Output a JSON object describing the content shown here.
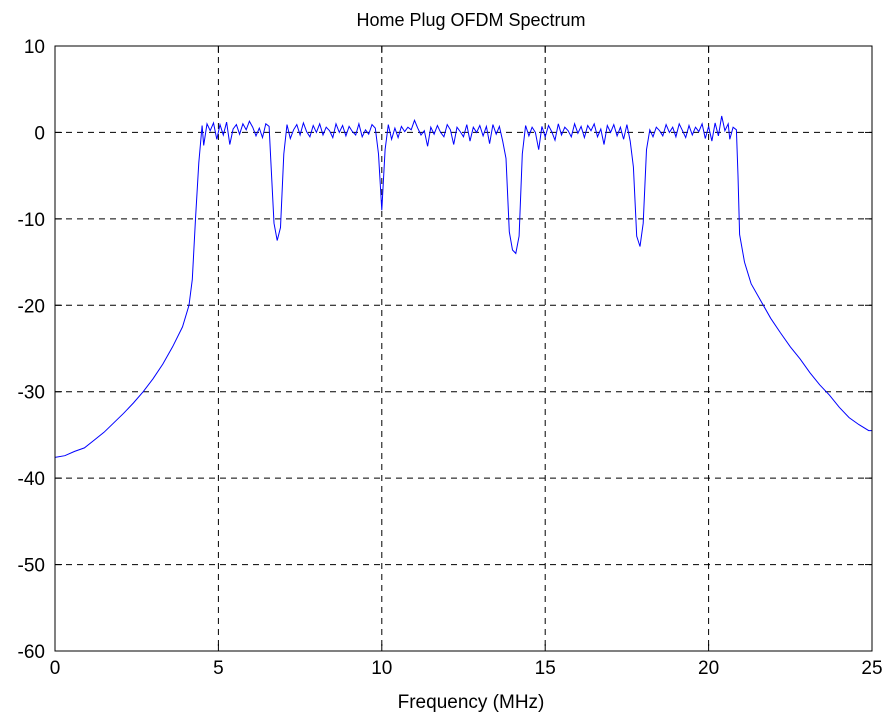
{
  "chart_data": {
    "type": "line",
    "title": "Home Plug OFDM Spectrum",
    "xlabel": "Frequency (MHz)",
    "ylabel": "",
    "xlim": [
      0,
      25
    ],
    "ylim": [
      -60,
      10
    ],
    "xticks": [
      0,
      5,
      10,
      15,
      20,
      25
    ],
    "yticks": [
      -60,
      -50,
      -40,
      -30,
      -20,
      -10,
      0,
      10
    ],
    "xtick_labels": [
      "0",
      "5",
      "10",
      "15",
      "20",
      "25"
    ],
    "ytick_labels": [
      "-60",
      "-50",
      "-40",
      "-30",
      "-20",
      "-10",
      "0",
      "10"
    ],
    "grid": true,
    "legend": "none",
    "line_color": "#0000ff",
    "grid_color": "#000000",
    "series": [
      {
        "points": [
          [
            0.0,
            -37.6
          ],
          [
            0.3,
            -37.4
          ],
          [
            0.6,
            -36.9
          ],
          [
            0.9,
            -36.5
          ],
          [
            1.2,
            -35.6
          ],
          [
            1.5,
            -34.7
          ],
          [
            1.8,
            -33.6
          ],
          [
            2.1,
            -32.5
          ],
          [
            2.4,
            -31.3
          ],
          [
            2.7,
            -30.0
          ],
          [
            3.0,
            -28.5
          ],
          [
            3.3,
            -26.8
          ],
          [
            3.6,
            -24.8
          ],
          [
            3.9,
            -22.5
          ],
          [
            4.1,
            -20.0
          ],
          [
            4.2,
            -17.0
          ],
          [
            4.3,
            -10.0
          ],
          [
            4.4,
            -3.5
          ],
          [
            4.5,
            0.8
          ],
          [
            4.55,
            -1.5
          ],
          [
            4.65,
            1.0
          ],
          [
            4.75,
            0.2
          ],
          [
            4.85,
            1.1
          ],
          [
            4.95,
            -0.8
          ],
          [
            5.05,
            0.9
          ],
          [
            5.15,
            -0.3
          ],
          [
            5.25,
            1.2
          ],
          [
            5.35,
            -1.4
          ],
          [
            5.45,
            0.4
          ],
          [
            5.55,
            0.9
          ],
          [
            5.65,
            -0.2
          ],
          [
            5.75,
            1.0
          ],
          [
            5.85,
            0.3
          ],
          [
            5.95,
            1.3
          ],
          [
            6.05,
            0.6
          ],
          [
            6.15,
            -0.4
          ],
          [
            6.25,
            0.5
          ],
          [
            6.35,
            -0.6
          ],
          [
            6.45,
            1.0
          ],
          [
            6.55,
            0.7
          ],
          [
            6.6,
            -3.0
          ],
          [
            6.7,
            -10.5
          ],
          [
            6.8,
            -12.5
          ],
          [
            6.9,
            -11.0
          ],
          [
            7.0,
            -2.5
          ],
          [
            7.1,
            0.9
          ],
          [
            7.2,
            -0.7
          ],
          [
            7.3,
            0.3
          ],
          [
            7.4,
            0.9
          ],
          [
            7.5,
            -0.3
          ],
          [
            7.6,
            1.1
          ],
          [
            7.7,
            0.1
          ],
          [
            7.8,
            -0.5
          ],
          [
            7.9,
            0.8
          ],
          [
            8.0,
            0.0
          ],
          [
            8.1,
            1.0
          ],
          [
            8.2,
            -0.3
          ],
          [
            8.3,
            0.6
          ],
          [
            8.4,
            0.2
          ],
          [
            8.5,
            -0.6
          ],
          [
            8.6,
            1.0
          ],
          [
            8.7,
            0.0
          ],
          [
            8.8,
            0.8
          ],
          [
            8.9,
            -0.4
          ],
          [
            9.0,
            0.7
          ],
          [
            9.1,
            0.1
          ],
          [
            9.2,
            -0.3
          ],
          [
            9.3,
            1.0
          ],
          [
            9.4,
            -0.5
          ],
          [
            9.5,
            0.3
          ],
          [
            9.6,
            -0.2
          ],
          [
            9.7,
            0.9
          ],
          [
            9.8,
            0.5
          ],
          [
            9.9,
            -2.5
          ],
          [
            10.0,
            -9.0
          ],
          [
            10.1,
            -2.0
          ],
          [
            10.2,
            0.9
          ],
          [
            10.3,
            -0.8
          ],
          [
            10.4,
            0.5
          ],
          [
            10.5,
            -0.6
          ],
          [
            10.6,
            0.7
          ],
          [
            10.7,
            0.1
          ],
          [
            10.8,
            0.6
          ],
          [
            10.9,
            0.3
          ],
          [
            11.0,
            1.4
          ],
          [
            11.1,
            0.5
          ],
          [
            11.2,
            -0.3
          ],
          [
            11.3,
            0.2
          ],
          [
            11.4,
            -1.6
          ],
          [
            11.5,
            0.6
          ],
          [
            11.6,
            -0.2
          ],
          [
            11.7,
            0.8
          ],
          [
            11.8,
            0.0
          ],
          [
            11.9,
            -0.5
          ],
          [
            12.0,
            0.9
          ],
          [
            12.1,
            0.3
          ],
          [
            12.2,
            -1.4
          ],
          [
            12.3,
            0.6
          ],
          [
            12.4,
            0.1
          ],
          [
            12.5,
            -0.5
          ],
          [
            12.6,
            0.9
          ],
          [
            12.7,
            -1.0
          ],
          [
            12.8,
            0.6
          ],
          [
            12.9,
            0.0
          ],
          [
            13.0,
            0.8
          ],
          [
            13.1,
            -0.4
          ],
          [
            13.2,
            0.7
          ],
          [
            13.3,
            -1.3
          ],
          [
            13.4,
            0.9
          ],
          [
            13.5,
            -0.2
          ],
          [
            13.6,
            0.7
          ],
          [
            13.7,
            -1.0
          ],
          [
            13.8,
            -3.0
          ],
          [
            13.9,
            -11.5
          ],
          [
            14.0,
            -13.6
          ],
          [
            14.1,
            -14.0
          ],
          [
            14.2,
            -12.0
          ],
          [
            14.3,
            -2.5
          ],
          [
            14.4,
            0.8
          ],
          [
            14.5,
            -0.4
          ],
          [
            14.6,
            0.6
          ],
          [
            14.7,
            0.0
          ],
          [
            14.8,
            -2.0
          ],
          [
            14.9,
            0.7
          ],
          [
            15.0,
            -0.5
          ],
          [
            15.1,
            0.8
          ],
          [
            15.2,
            0.1
          ],
          [
            15.3,
            -0.9
          ],
          [
            15.4,
            1.0
          ],
          [
            15.5,
            -0.3
          ],
          [
            15.6,
            0.6
          ],
          [
            15.7,
            0.2
          ],
          [
            15.8,
            -0.5
          ],
          [
            15.9,
            1.0
          ],
          [
            16.0,
            -0.1
          ],
          [
            16.1,
            0.7
          ],
          [
            16.2,
            -0.6
          ],
          [
            16.3,
            0.8
          ],
          [
            16.4,
            0.2
          ],
          [
            16.5,
            1.0
          ],
          [
            16.6,
            -0.5
          ],
          [
            16.7,
            0.4
          ],
          [
            16.8,
            -1.4
          ],
          [
            16.9,
            0.8
          ],
          [
            17.0,
            0.0
          ],
          [
            17.1,
            0.9
          ],
          [
            17.2,
            -0.4
          ],
          [
            17.3,
            0.6
          ],
          [
            17.4,
            -0.8
          ],
          [
            17.5,
            0.9
          ],
          [
            17.6,
            -1.0
          ],
          [
            17.7,
            -4.0
          ],
          [
            17.8,
            -12.0
          ],
          [
            17.9,
            -13.2
          ],
          [
            18.0,
            -10.5
          ],
          [
            18.1,
            -2.0
          ],
          [
            18.2,
            0.3
          ],
          [
            18.3,
            -0.5
          ],
          [
            18.4,
            0.6
          ],
          [
            18.5,
            0.2
          ],
          [
            18.6,
            -0.4
          ],
          [
            18.7,
            0.9
          ],
          [
            18.8,
            0.0
          ],
          [
            18.9,
            0.6
          ],
          [
            19.0,
            -0.5
          ],
          [
            19.1,
            1.0
          ],
          [
            19.2,
            0.2
          ],
          [
            19.3,
            -0.6
          ],
          [
            19.4,
            0.8
          ],
          [
            19.5,
            -0.3
          ],
          [
            19.6,
            0.6
          ],
          [
            19.7,
            0.1
          ],
          [
            19.8,
            1.0
          ],
          [
            19.9,
            -0.7
          ],
          [
            20.0,
            0.7
          ],
          [
            20.1,
            -1.0
          ],
          [
            20.2,
            1.1
          ],
          [
            20.3,
            -0.4
          ],
          [
            20.4,
            1.9
          ],
          [
            20.5,
            0.2
          ],
          [
            20.6,
            1.0
          ],
          [
            20.65,
            -0.8
          ],
          [
            20.75,
            0.6
          ],
          [
            20.85,
            0.3
          ],
          [
            20.9,
            -5.0
          ],
          [
            20.95,
            -11.8
          ],
          [
            21.1,
            -15.0
          ],
          [
            21.3,
            -17.5
          ],
          [
            21.6,
            -19.5
          ],
          [
            21.9,
            -21.5
          ],
          [
            22.2,
            -23.2
          ],
          [
            22.5,
            -24.8
          ],
          [
            22.8,
            -26.2
          ],
          [
            23.1,
            -27.8
          ],
          [
            23.4,
            -29.2
          ],
          [
            23.7,
            -30.4
          ],
          [
            24.0,
            -31.8
          ],
          [
            24.3,
            -33.0
          ],
          [
            24.6,
            -33.8
          ],
          [
            24.9,
            -34.5
          ],
          [
            25.0,
            -34.5
          ]
        ]
      }
    ]
  }
}
